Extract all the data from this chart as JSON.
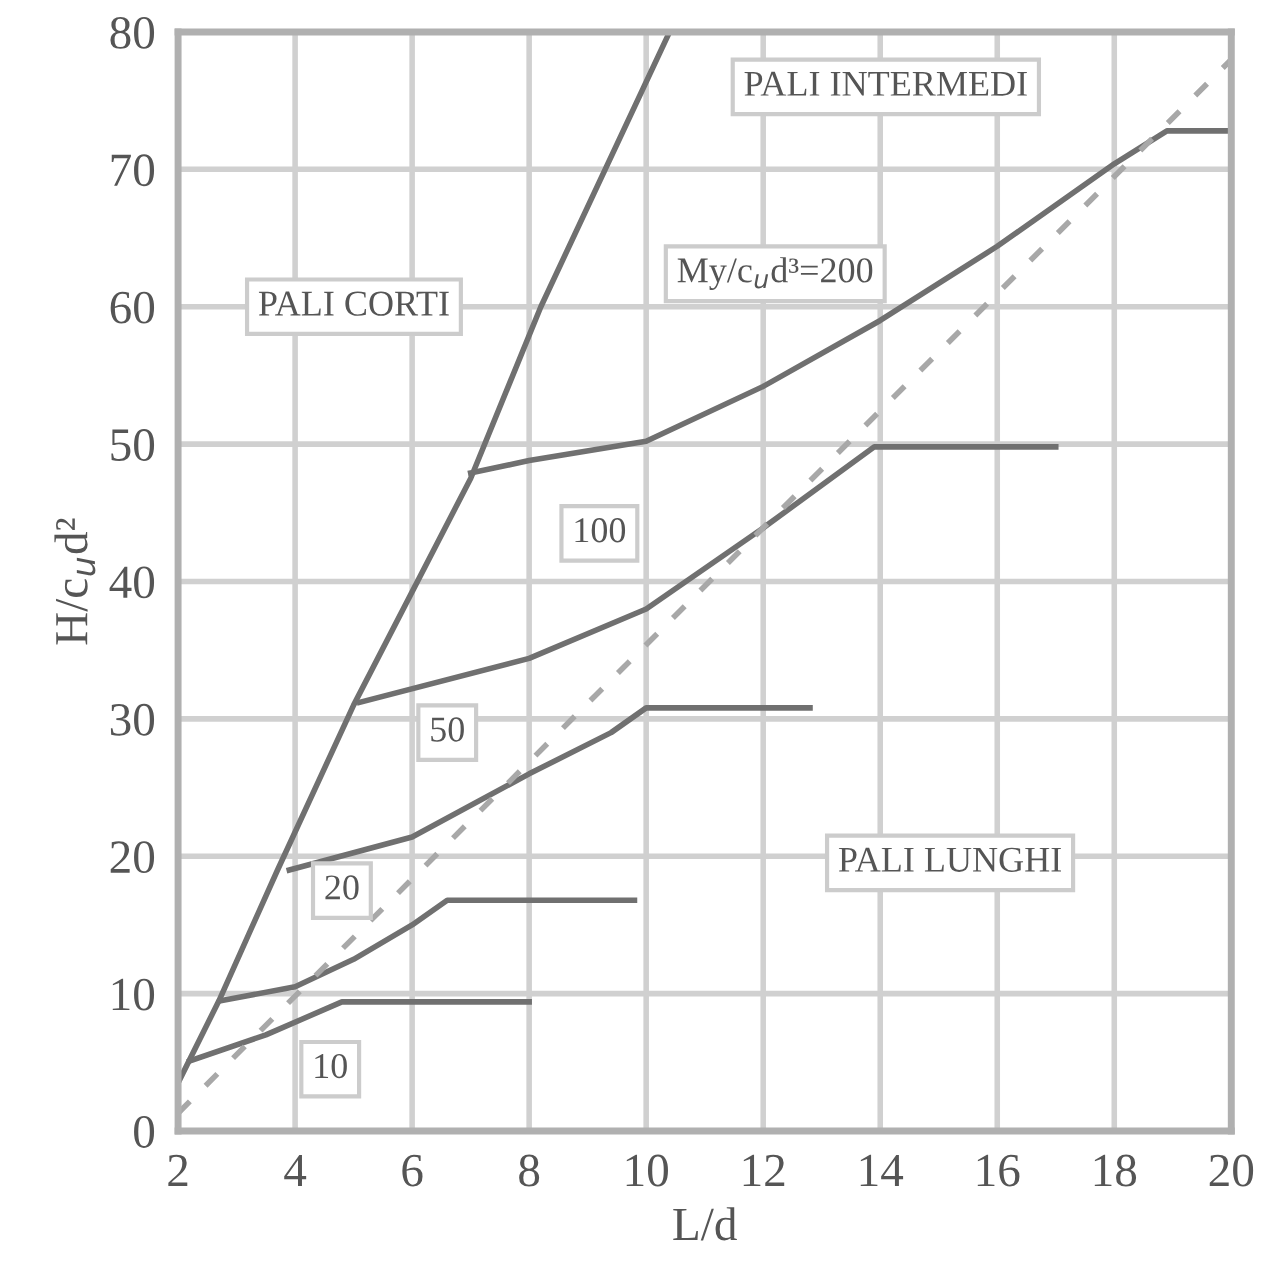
{
  "chart_data": {
    "type": "line",
    "xlabel": "L/d",
    "ylabel": "H/c$_{u}$d²",
    "xlim": [
      2,
      20
    ],
    "xticks": [
      2,
      4,
      6,
      8,
      10,
      12,
      14,
      16,
      18,
      20
    ],
    "ylim": [
      0,
      80
    ],
    "yticks": [
      0,
      10,
      20,
      30,
      40,
      50,
      60,
      70,
      80
    ],
    "grid": true,
    "legend": false,
    "marker": "none",
    "series": [
      {
        "color": "#707070",
        "line_style": "solid",
        "x": [
          2,
          2.7,
          3.7,
          5,
          7,
          8.2,
          10.4
        ],
        "values": [
          3.5,
          9.5,
          19,
          31,
          47.5,
          60,
          80
        ]
      },
      {
        "color": "#707070",
        "line_style": "solid",
        "x": [
          2.2,
          3.5,
          4.8,
          8
        ],
        "values": [
          5.1,
          7,
          9.4,
          9.4
        ]
      },
      {
        "color": "#707070",
        "line_style": "solid",
        "x": [
          2.75,
          4,
          5,
          6,
          6.6,
          9.8
        ],
        "values": [
          9.5,
          10.5,
          12.5,
          15,
          16.8,
          16.8
        ]
      },
      {
        "color": "#707070",
        "line_style": "solid",
        "x": [
          3.9,
          6,
          8,
          9.4,
          10,
          12.8
        ],
        "values": [
          19,
          21.4,
          26,
          29,
          30.8,
          30.8
        ]
      },
      {
        "color": "#707070",
        "line_style": "solid",
        "x": [
          5.1,
          8,
          10,
          12,
          13.9,
          17
        ],
        "values": [
          31.2,
          34.4,
          38,
          43.9,
          49.8,
          49.8
        ]
      },
      {
        "color": "#707070",
        "line_style": "solid",
        "x": [
          7,
          8,
          10,
          12,
          14,
          16,
          18,
          18.9,
          20
        ],
        "values": [
          47.9,
          48.8,
          50.2,
          54.2,
          59,
          64.4,
          70.4,
          72.8,
          72.8
        ]
      },
      {
        "color": "#a8a8a8",
        "line_style": "dashed",
        "x": [
          2,
          20
        ],
        "values": [
          1.3,
          78
        ]
      }
    ],
    "annotations": [
      "PALI CORTI",
      "PALI INTERMEDI",
      "PALI LUNGHI",
      "My/c$_{u}$d³=200",
      {
        "text": "100",
        "x": 9.2,
        "y": 43.5
      },
      {
        "text": "50",
        "x": 6.6,
        "y": 29
      },
      {
        "text": "20",
        "x": 4.8,
        "y": 17.5
      },
      {
        "text": "10",
        "x": 4.6,
        "y": 4.5
      }
    ]
  }
}
